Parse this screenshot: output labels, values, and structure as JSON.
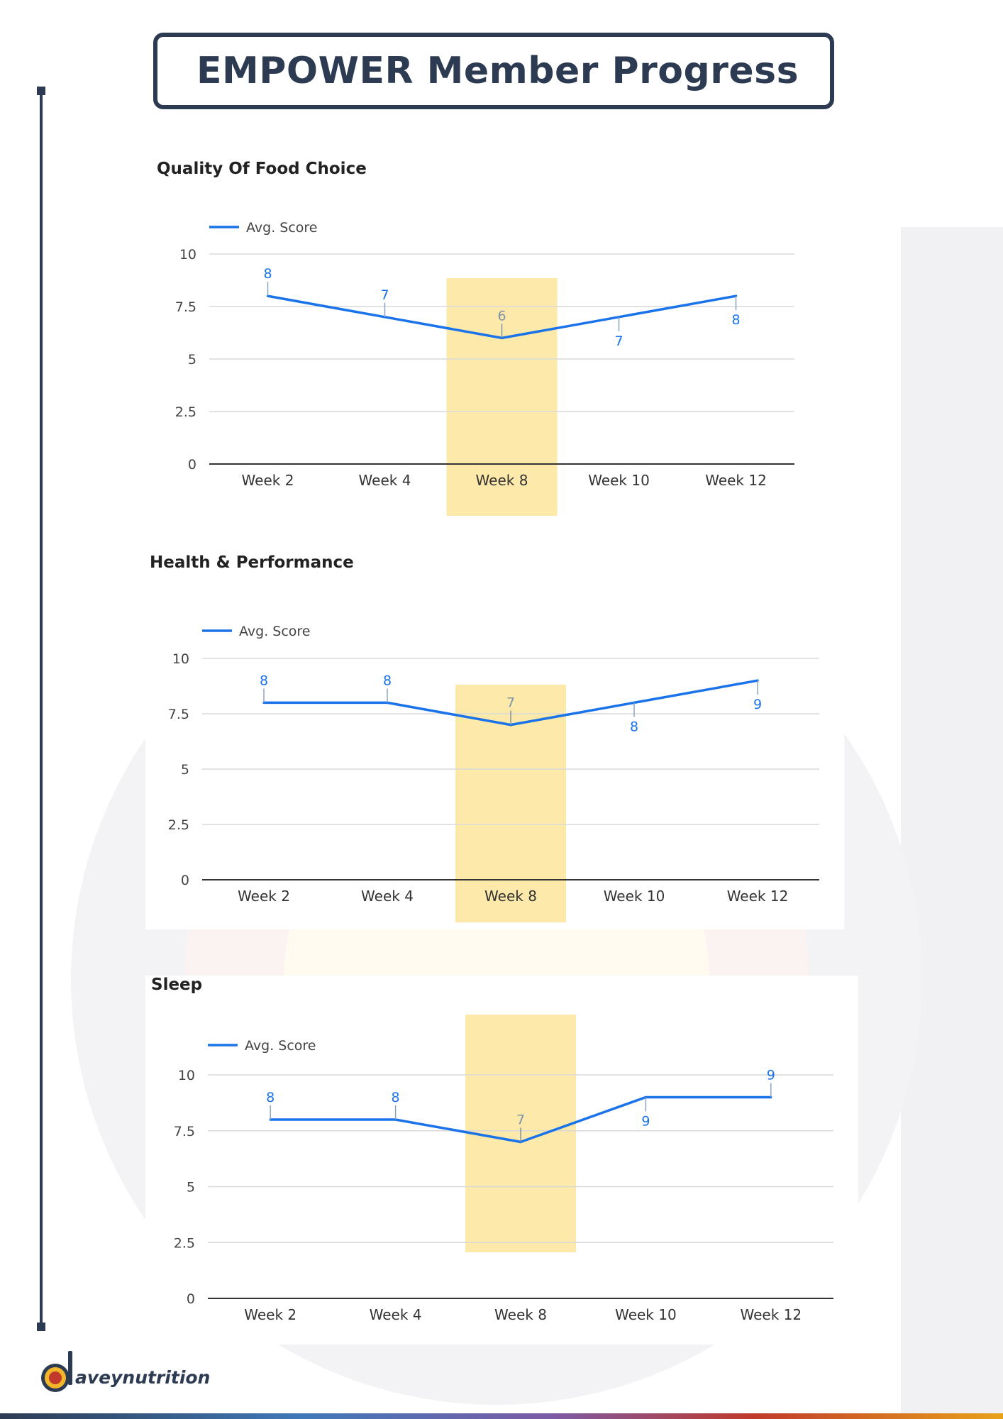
{
  "header": {
    "title": "EMPOWER Member Progress"
  },
  "brand": {
    "name": "aveynutrition",
    "accent": "#2d3b52",
    "logo_ring": "#f2b62b",
    "logo_core": "#c0392b"
  },
  "colors": {
    "line": "#1a73e8",
    "line_highlight": "#7d94ab",
    "highlight_band": "#fde9a9",
    "grid": "#d9d9d9",
    "axis": "#333333"
  },
  "chart_data": [
    {
      "type": "line",
      "title": "Quality Of Food Choice",
      "categories": [
        "Week 2",
        "Week 4",
        "Week 8",
        "Week 10",
        "Week 12"
      ],
      "series": [
        {
          "name": "Avg. Score",
          "values": [
            8,
            7,
            6,
            7,
            8
          ]
        }
      ],
      "data_labels": [
        "8",
        "7",
        "6",
        "7",
        "8"
      ],
      "yticks": [
        "0",
        "2.5",
        "5",
        "7.5",
        "10"
      ],
      "ylim": [
        0,
        10
      ],
      "highlight_category": "Week 8",
      "legend": "top-left",
      "grid": true
    },
    {
      "type": "line",
      "title": "Health & Performance",
      "categories": [
        "Week 2",
        "Week 4",
        "Week 8",
        "Week 10",
        "Week 12"
      ],
      "series": [
        {
          "name": "Avg. Score",
          "values": [
            8,
            8,
            7,
            8,
            9
          ]
        }
      ],
      "data_labels": [
        "8",
        "8",
        "7",
        "8",
        "9"
      ],
      "yticks": [
        "0",
        "2.5",
        "5",
        "7.5",
        "10"
      ],
      "ylim": [
        0,
        10
      ],
      "highlight_category": "Week 8",
      "legend": "top-left",
      "grid": true
    },
    {
      "type": "line",
      "title": "Sleep",
      "categories": [
        "Week 2",
        "Week 4",
        "Week 8",
        "Week 10",
        "Week 12"
      ],
      "series": [
        {
          "name": "Avg. Score",
          "values": [
            8,
            8,
            7,
            9,
            9
          ]
        }
      ],
      "data_labels": [
        "8",
        "8",
        "7",
        "9",
        "9"
      ],
      "yticks": [
        "0",
        "2.5",
        "5",
        "7.5",
        "10"
      ],
      "ylim": [
        0,
        10
      ],
      "highlight_category": "Week 8",
      "legend": "top-left",
      "grid": true
    }
  ]
}
